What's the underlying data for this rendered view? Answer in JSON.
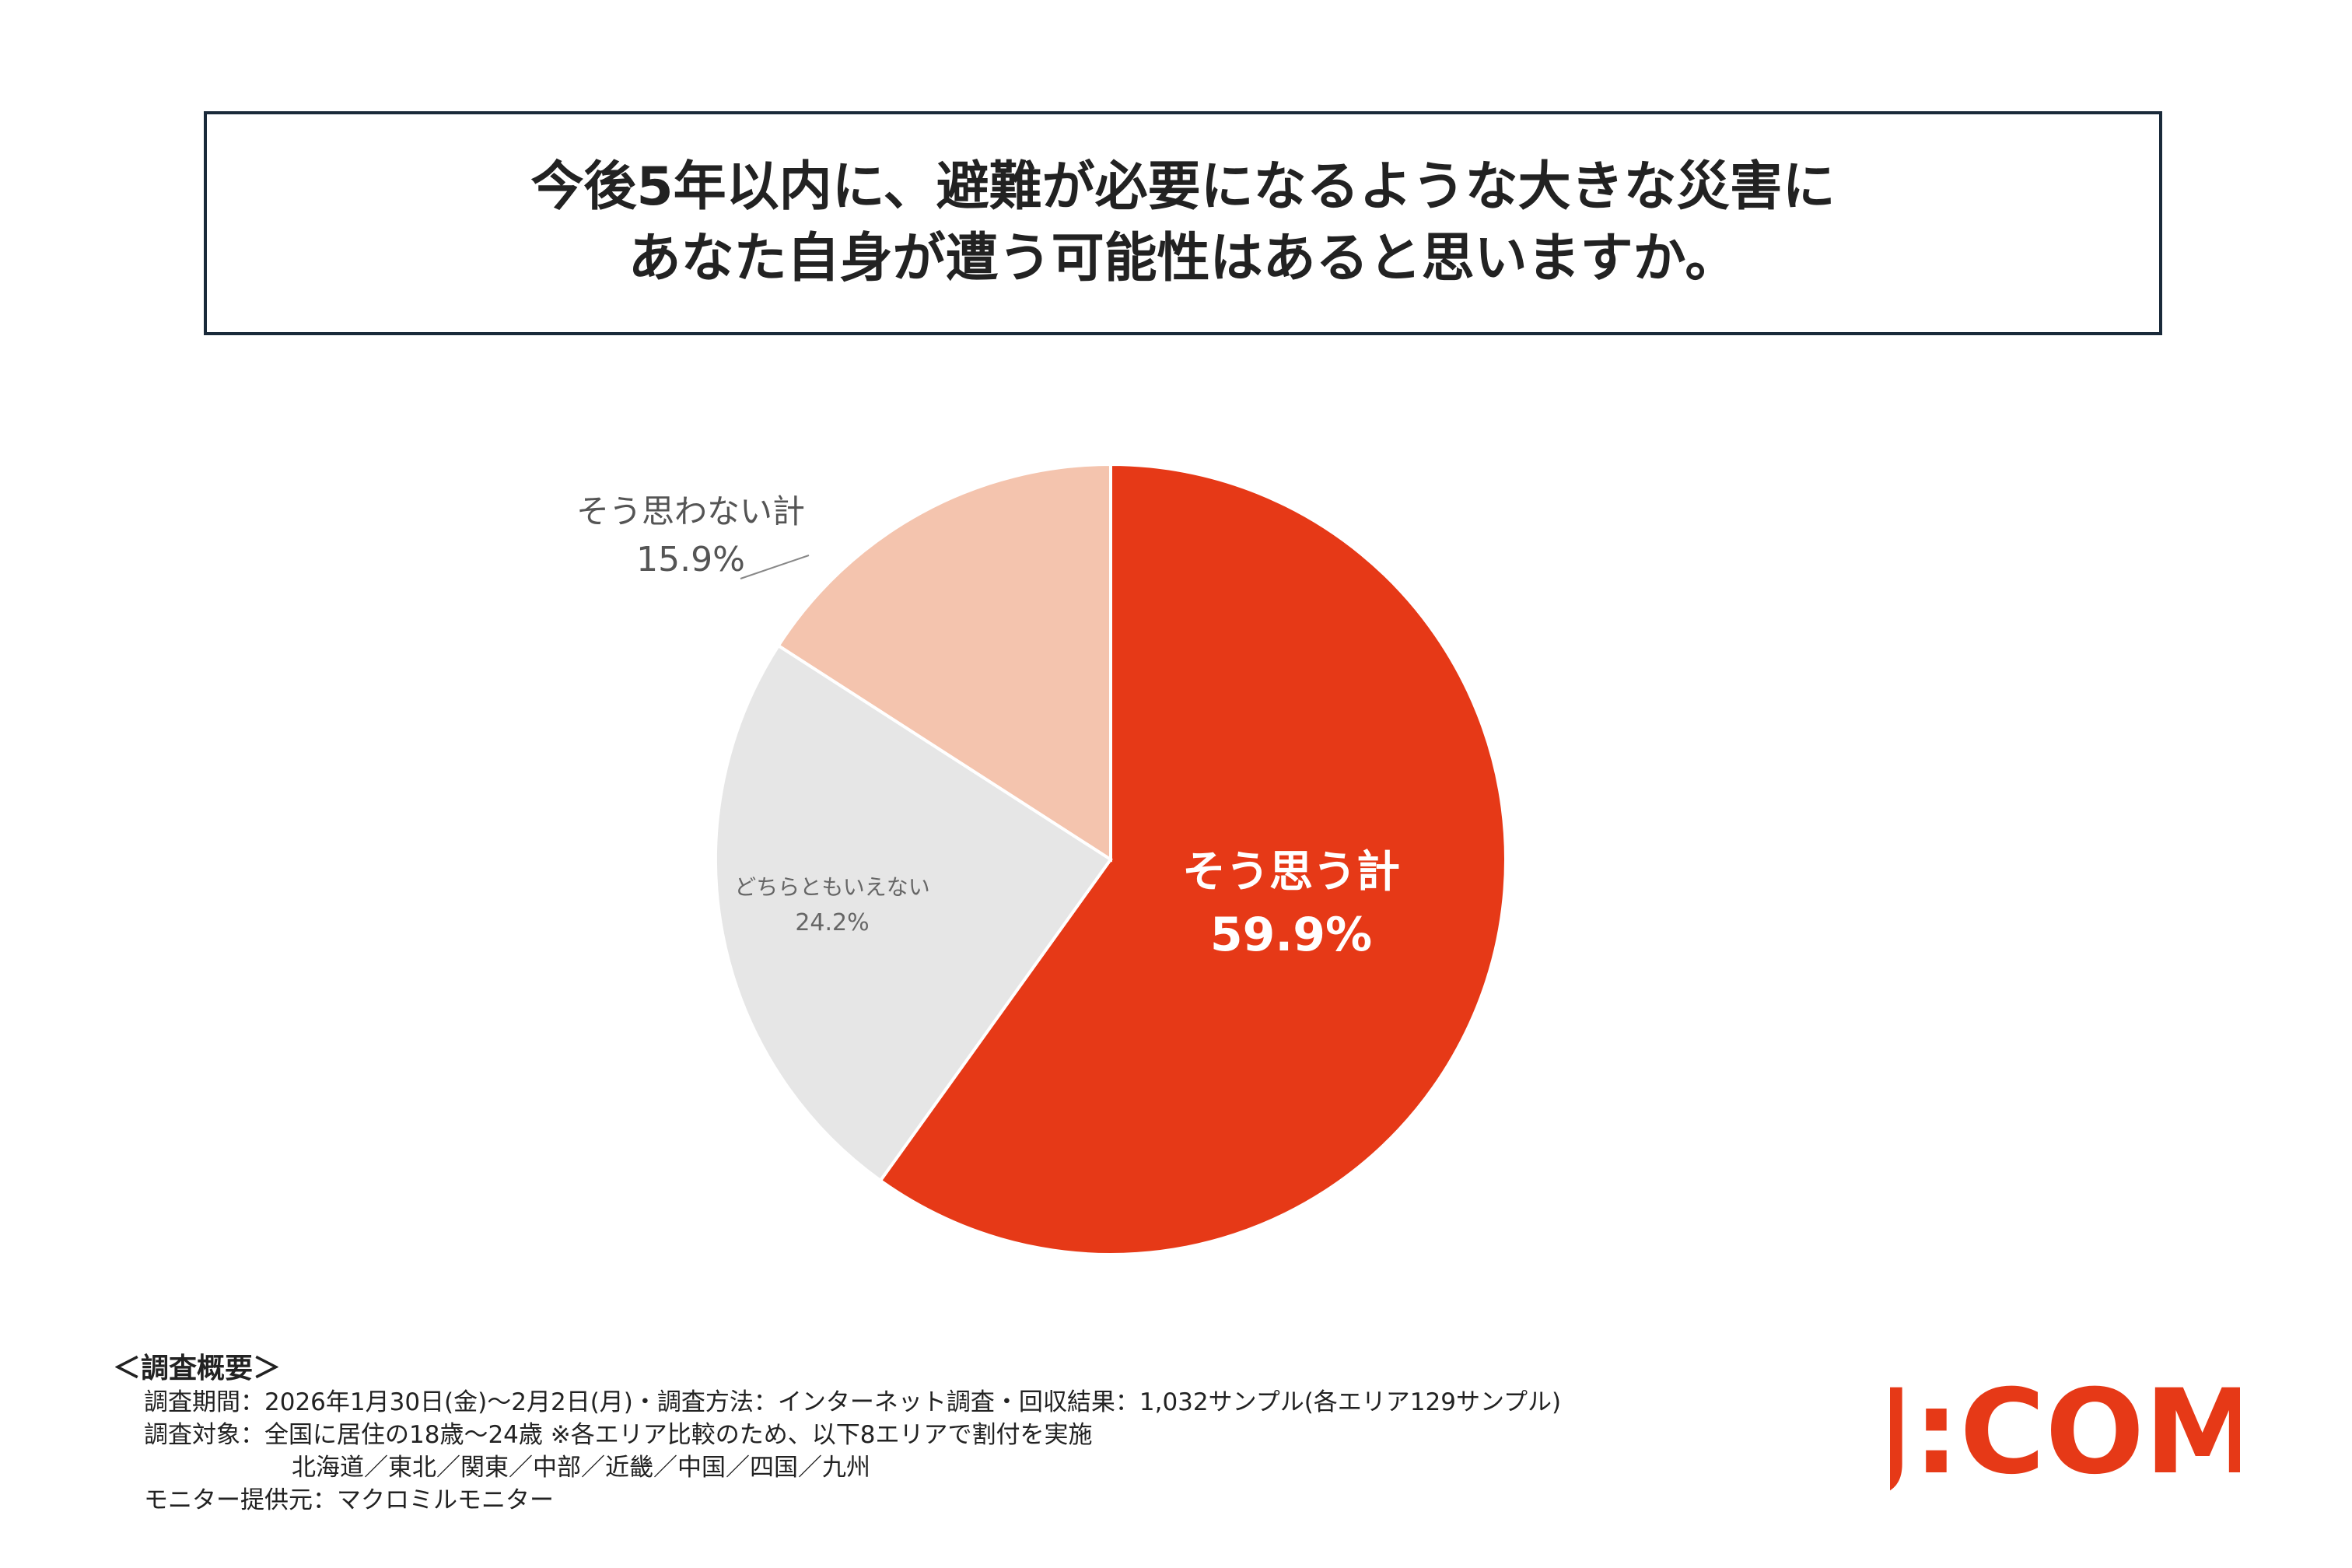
{
  "title": {
    "line1": "今後5年以内に、避難が必要になるような大きな災害に",
    "line2": "あなた自身が遭う可能性はあると思いますか。"
  },
  "chart_data": {
    "type": "pie",
    "slices": [
      {
        "label": "そう思う計",
        "value": 59.9,
        "value_text": "59.9%",
        "color": "#e63917"
      },
      {
        "label": "どちらともいえない",
        "value": 24.2,
        "value_text": "24.2%",
        "color": "#e6e6e6"
      },
      {
        "label": "そう思わない計",
        "value": 15.9,
        "value_text": "15.9%",
        "color": "#f4c4ae"
      }
    ],
    "start_angle": "12 o'clock",
    "direction": "clockwise"
  },
  "footer": {
    "heading": "＜調査概要＞",
    "line1": "調査期間：2026年1月30日(金)～2月2日(月)・調査方法：インターネット調査・回収結果：1,032サンプル(各エリア129サンプル)",
    "line2": "調査対象：全国に居住の18歳～24歳 ※各エリア比較のため、以下8エリアで割付を実施",
    "line3": "北海道／東北／関東／中部／近畿／中国／四国／九州",
    "line4": "モニター提供元：マクロミルモニター"
  },
  "logo": {
    "text": "J:COM",
    "color": "#e63917"
  }
}
